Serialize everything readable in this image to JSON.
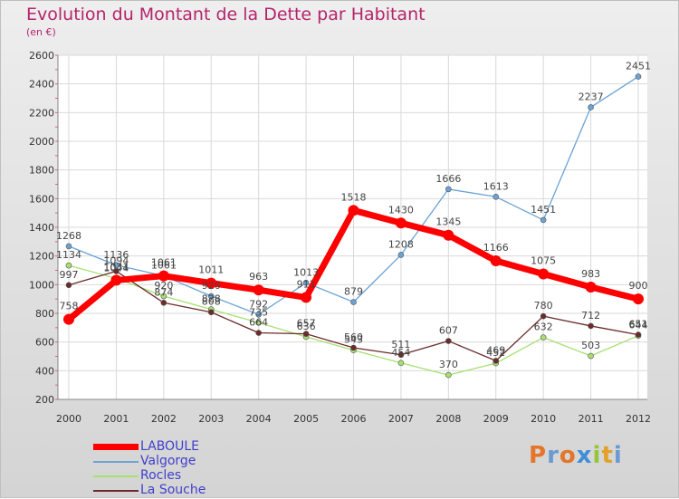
{
  "title": "Evolution du Montant de la Dette par Habitant",
  "subtitle": "(en €)",
  "logo": "Proxiti",
  "chart_data": {
    "type": "line",
    "title": "Evolution du Montant de la Dette par Habitant",
    "subtitle": "(en €)",
    "x": [
      "2000",
      "2001",
      "2002",
      "2003",
      "2004",
      "2005",
      "2006",
      "2007",
      "2008",
      "2009",
      "2010",
      "2011",
      "2012"
    ],
    "ylim": [
      200,
      2600
    ],
    "yticks": [
      "200",
      "400",
      "600",
      "800",
      "1000",
      "1200",
      "1400",
      "1600",
      "1800",
      "2000",
      "2200",
      "2400",
      "2600"
    ],
    "grid": true,
    "legend": "bottom-left",
    "series": [
      {
        "name": "LABOULE",
        "color": "#ff0000",
        "values": [
          758,
          1031,
          1061,
          1011,
          963,
          911,
          1518,
          1430,
          1345,
          1166,
          1075,
          983,
          900
        ]
      },
      {
        "name": "Valgorge",
        "color": "#6aa3d4",
        "values": [
          1268,
          1136,
          1061,
          920,
          792,
          1013,
          879,
          1208,
          1666,
          1613,
          1451,
          2237,
          2451
        ]
      },
      {
        "name": "Rocles",
        "color": "#a8e070",
        "values": [
          1134,
          1044,
          920,
          828,
          735,
          636,
          543,
          454,
          370,
          452,
          632,
          503,
          644
        ]
      },
      {
        "name": "La Souche",
        "color": "#6b2b2b",
        "values": [
          997,
          1094,
          874,
          808,
          664,
          657,
          560,
          511,
          607,
          469,
          780,
          712,
          651
        ]
      }
    ]
  }
}
